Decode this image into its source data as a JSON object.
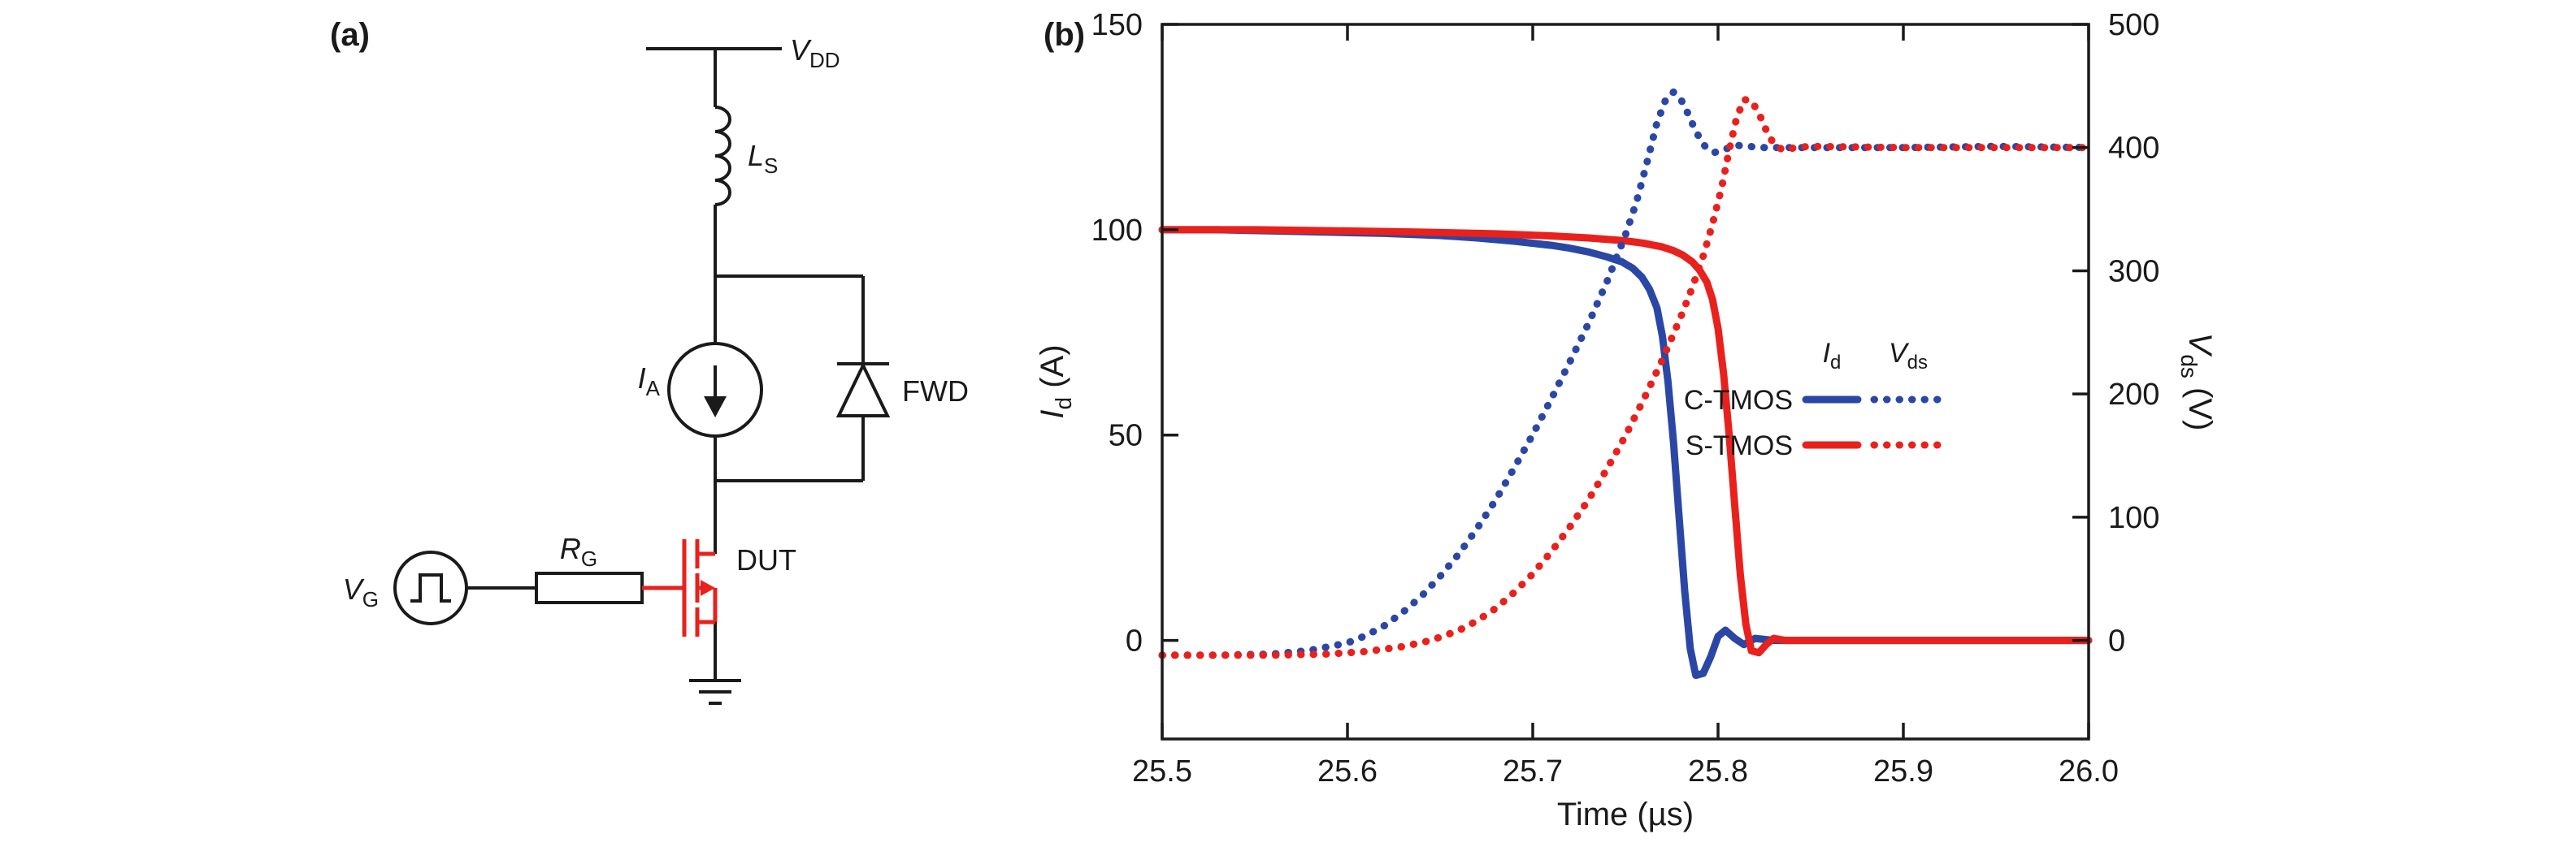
{
  "figure": {
    "panel_a_label": "(a)",
    "panel_b_label": "(b)"
  },
  "colors": {
    "black": "#1a1a1a",
    "blue": "#2b47a5",
    "red": "#e8211d"
  },
  "circuit": {
    "vdd": {
      "pre": "V",
      "sub": "DD"
    },
    "ls": {
      "pre": "L",
      "sub": "S"
    },
    "ia": {
      "pre": "I",
      "sub": "A"
    },
    "fwd_label": "FWD",
    "dut_label": "DUT",
    "rg": {
      "pre": "R",
      "sub": "G"
    },
    "vg": {
      "pre": "V",
      "sub": "G"
    }
  },
  "chart": {
    "axis_titles": {
      "left_pre": "I",
      "left_sub": "d",
      "left_post": " (A)",
      "right_pre": "V",
      "right_sub": "ds",
      "right_post": " (V)",
      "x": "Time (µs)"
    }
  },
  "legend": {
    "col_id": {
      "pre": "I",
      "sub": "d"
    },
    "col_vds": {
      "pre": "V",
      "sub": "ds"
    },
    "rows": [
      {
        "label": "C-TMOS",
        "color": "#2b47a5"
      },
      {
        "label": "S-TMOS",
        "color": "#e8211d"
      }
    ]
  },
  "chart_data": {
    "type": "line",
    "title": "",
    "xlabel": "Time (µs)",
    "ylabel_left": "Id (A)",
    "ylabel_right": "Vds (V)",
    "xlim": [
      25.5,
      26.0
    ],
    "ylim_left": [
      -24,
      150
    ],
    "ylim_right": [
      -80,
      500
    ],
    "grid": false,
    "legend_position": "inside-right-middle",
    "x_ticks": {
      "values": [
        25.5,
        25.6,
        25.7,
        25.8,
        25.9,
        26.0
      ],
      "labels": [
        "25.5",
        "25.6",
        "25.7",
        "25.8",
        "25.9",
        "26.0"
      ]
    },
    "left_ticks": {
      "values": [
        0,
        50,
        100,
        150
      ],
      "labels": [
        "0",
        "50",
        "100",
        "150"
      ]
    },
    "right_ticks": {
      "values": [
        0,
        100,
        200,
        300,
        400,
        500
      ],
      "labels": [
        "0",
        "100",
        "200",
        "300",
        "400",
        "500"
      ]
    },
    "series": [
      {
        "device": "C-TMOS",
        "quantity": "Id",
        "axis": "left",
        "style": "solid",
        "color": "#2b47a5",
        "points": [
          [
            25.5,
            100
          ],
          [
            25.53,
            100
          ],
          [
            25.56,
            99.7
          ],
          [
            25.59,
            99.4
          ],
          [
            25.62,
            99.1
          ],
          [
            25.65,
            98.6
          ],
          [
            25.67,
            98
          ],
          [
            25.69,
            97.2
          ],
          [
            25.71,
            96.2
          ],
          [
            25.72,
            95.5
          ],
          [
            25.73,
            94.6
          ],
          [
            25.74,
            93.4
          ],
          [
            25.748,
            92.2
          ],
          [
            25.754,
            90.6
          ],
          [
            25.759,
            88.4
          ],
          [
            25.763,
            85.5
          ],
          [
            25.767,
            81
          ],
          [
            25.77,
            74
          ],
          [
            25.773,
            63
          ],
          [
            25.776,
            48
          ],
          [
            25.779,
            30
          ],
          [
            25.782,
            12
          ],
          [
            25.785,
            -2
          ],
          [
            25.788,
            -8.5
          ],
          [
            25.792,
            -8
          ],
          [
            25.796,
            -4
          ],
          [
            25.8,
            1
          ],
          [
            25.804,
            2.5
          ],
          [
            25.809,
            0.5
          ],
          [
            25.814,
            -1
          ],
          [
            25.82,
            0.5
          ],
          [
            25.83,
            0
          ],
          [
            25.85,
            0
          ],
          [
            25.9,
            0
          ],
          [
            25.95,
            0
          ],
          [
            26.0,
            0
          ]
        ]
      },
      {
        "device": "S-TMOS",
        "quantity": "Id",
        "axis": "left",
        "style": "solid",
        "color": "#e8211d",
        "points": [
          [
            25.5,
            100
          ],
          [
            25.55,
            100
          ],
          [
            25.6,
            99.7
          ],
          [
            25.64,
            99.4
          ],
          [
            25.68,
            99
          ],
          [
            25.71,
            98.5
          ],
          [
            25.73,
            98
          ],
          [
            25.75,
            97.3
          ],
          [
            25.76,
            96.7
          ],
          [
            25.77,
            95.8
          ],
          [
            25.776,
            94.9
          ],
          [
            25.781,
            93.8
          ],
          [
            25.786,
            92.2
          ],
          [
            25.79,
            90.2
          ],
          [
            25.794,
            87.2
          ],
          [
            25.797,
            83
          ],
          [
            25.8,
            76
          ],
          [
            25.803,
            65
          ],
          [
            25.806,
            50
          ],
          [
            25.809,
            33
          ],
          [
            25.812,
            16
          ],
          [
            25.815,
            4
          ],
          [
            25.818,
            -2.5
          ],
          [
            25.822,
            -3
          ],
          [
            25.826,
            -1
          ],
          [
            25.83,
            0.5
          ],
          [
            25.836,
            0
          ],
          [
            25.85,
            0
          ],
          [
            25.9,
            0
          ],
          [
            25.95,
            0
          ],
          [
            26.0,
            0
          ]
        ]
      },
      {
        "device": "C-TMOS",
        "quantity": "Vds",
        "axis": "right",
        "style": "dotted",
        "color": "#2b47a5",
        "points": [
          [
            25.5,
            -12
          ],
          [
            25.53,
            -12
          ],
          [
            25.56,
            -11
          ],
          [
            25.58,
            -8
          ],
          [
            25.6,
            -2
          ],
          [
            25.61,
            4
          ],
          [
            25.62,
            12
          ],
          [
            25.63,
            23
          ],
          [
            25.64,
            36
          ],
          [
            25.65,
            52
          ],
          [
            25.66,
            70
          ],
          [
            25.67,
            91
          ],
          [
            25.68,
            114
          ],
          [
            25.69,
            140
          ],
          [
            25.7,
            167
          ],
          [
            25.71,
            196
          ],
          [
            25.72,
            226
          ],
          [
            25.73,
            257
          ],
          [
            25.74,
            291
          ],
          [
            25.75,
            329
          ],
          [
            25.756,
            356
          ],
          [
            25.762,
            390
          ],
          [
            25.767,
            420
          ],
          [
            25.772,
            440
          ],
          [
            25.776,
            445
          ],
          [
            25.78,
            439
          ],
          [
            25.784,
            427
          ],
          [
            25.788,
            413
          ],
          [
            25.793,
            401
          ],
          [
            25.798,
            396
          ],
          [
            25.803,
            398
          ],
          [
            25.809,
            402
          ],
          [
            25.816,
            401
          ],
          [
            25.825,
            400
          ],
          [
            25.85,
            400
          ],
          [
            25.9,
            400
          ],
          [
            25.95,
            401
          ],
          [
            26.0,
            400
          ]
        ]
      },
      {
        "device": "S-TMOS",
        "quantity": "Vds",
        "axis": "right",
        "style": "dotted",
        "color": "#e8211d",
        "points": [
          [
            25.5,
            -12
          ],
          [
            25.56,
            -12
          ],
          [
            25.59,
            -11
          ],
          [
            25.61,
            -9
          ],
          [
            25.63,
            -5
          ],
          [
            25.645,
            0
          ],
          [
            25.66,
            8
          ],
          [
            25.67,
            16
          ],
          [
            25.68,
            26
          ],
          [
            25.69,
            39
          ],
          [
            25.7,
            54
          ],
          [
            25.71,
            72
          ],
          [
            25.72,
            92
          ],
          [
            25.73,
            114
          ],
          [
            25.74,
            139
          ],
          [
            25.75,
            166
          ],
          [
            25.76,
            196
          ],
          [
            25.77,
            228
          ],
          [
            25.78,
            263
          ],
          [
            25.786,
            286
          ],
          [
            25.792,
            312
          ],
          [
            25.797,
            338
          ],
          [
            25.802,
            368
          ],
          [
            25.806,
            398
          ],
          [
            25.81,
            424
          ],
          [
            25.814,
            439
          ],
          [
            25.818,
            438
          ],
          [
            25.822,
            428
          ],
          [
            25.826,
            414
          ],
          [
            25.83,
            403
          ],
          [
            25.835,
            398
          ],
          [
            25.842,
            400
          ],
          [
            25.85,
            401
          ],
          [
            25.9,
            400
          ],
          [
            25.95,
            400
          ],
          [
            26.0,
            400
          ]
        ]
      }
    ]
  }
}
